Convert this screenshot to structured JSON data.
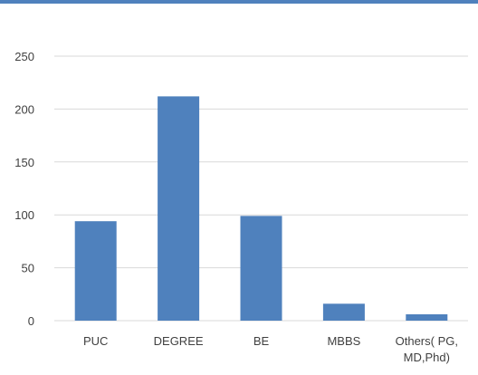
{
  "chart_data": {
    "type": "bar",
    "categories": [
      "PUC",
      "DEGREE",
      "BE",
      "MBBS",
      "Others( PG,\nMD,Phd)"
    ],
    "values": [
      94,
      212,
      99,
      16,
      6
    ],
    "ylim": [
      0,
      250
    ],
    "yticks": [
      0,
      50,
      100,
      150,
      200,
      250
    ],
    "grid": true,
    "legend": "none",
    "bar_color": "#4f81bd",
    "grid_color": "#d9d9d9"
  }
}
